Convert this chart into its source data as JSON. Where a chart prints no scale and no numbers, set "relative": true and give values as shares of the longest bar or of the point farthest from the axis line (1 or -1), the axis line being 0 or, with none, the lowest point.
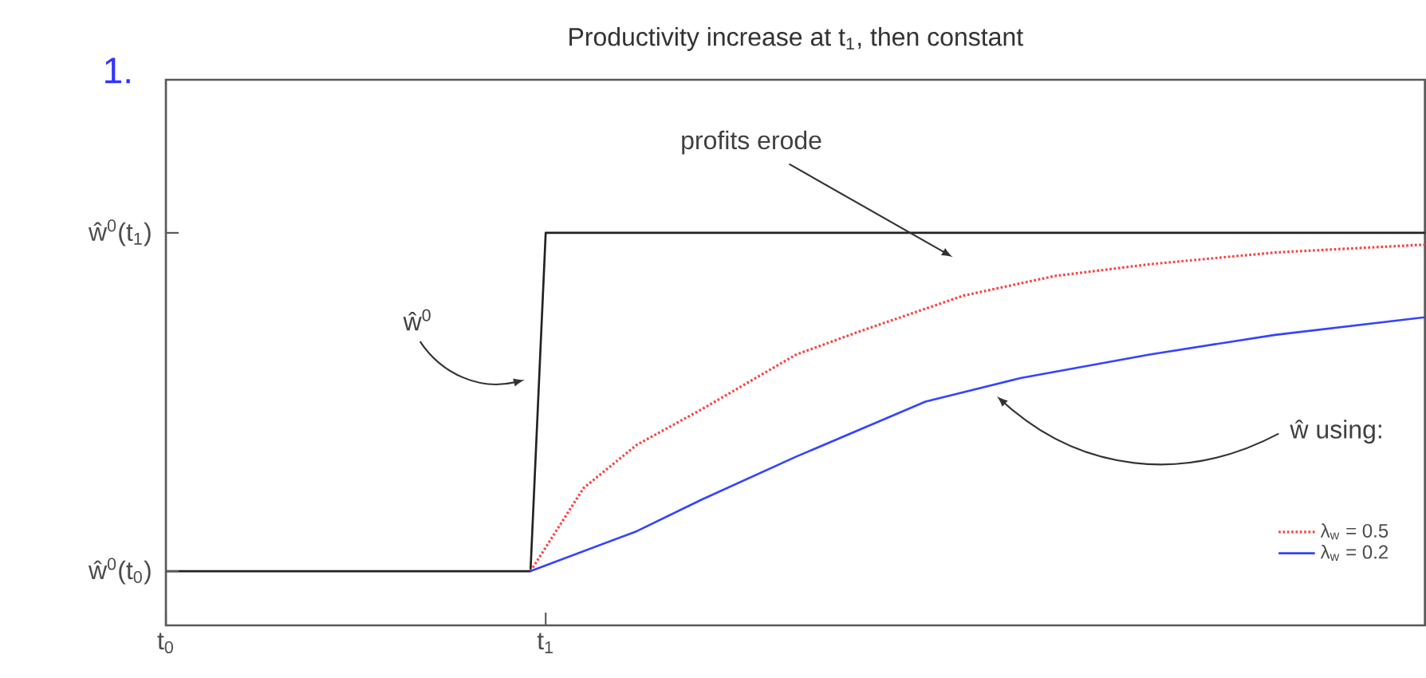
{
  "chart_data": {
    "type": "line",
    "title": "Productivity increase at t$_{1}$, then constant",
    "relative": true,
    "xlim": [
      0,
      3.315
    ],
    "xticks": [
      {
        "value": 0,
        "label": "t$_{0}$"
      },
      {
        "value": 1,
        "label": "t$_{1}$"
      }
    ],
    "series": [
      {
        "color": "#222222",
        "line_style": "solid",
        "x": [
          0,
          0.96,
          1.0,
          3.315
        ],
        "values": [
          0.138,
          0.138,
          1,
          1
        ]
      },
      {
        "name": "λ$_{w}$ = 0.5",
        "color": "#ff4040",
        "line_style": "dotted",
        "x": [
          0.96,
          1.1,
          1.24,
          1.41,
          1.66,
          1.83,
          2.1,
          2.34,
          2.59,
          2.92,
          3.315
        ],
        "values": [
          0.138,
          0.35,
          0.46,
          0.55,
          0.69,
          0.75,
          0.84,
          0.89,
          0.92,
          0.95,
          0.97
        ]
      },
      {
        "name": "λ$_{w}$ = 0.2",
        "color": "#3344ff",
        "line_style": "solid",
        "x": [
          0.96,
          1.24,
          1.41,
          1.66,
          2.0,
          2.25,
          2.59,
          2.92,
          3.315
        ],
        "values": [
          0.138,
          0.24,
          0.32,
          0.43,
          0.57,
          0.63,
          0.69,
          0.74,
          0.785
        ]
      }
    ],
    "annotations": [
      "1.",
      "profits erode",
      "ŵ$^{0}$",
      "ŵ using:",
      "ŵ$^{0}$(t$_{0}$)",
      "ŵ$^{0}$(t$_{1}$)"
    ],
    "legend": "bottom right",
    "grid": false
  }
}
